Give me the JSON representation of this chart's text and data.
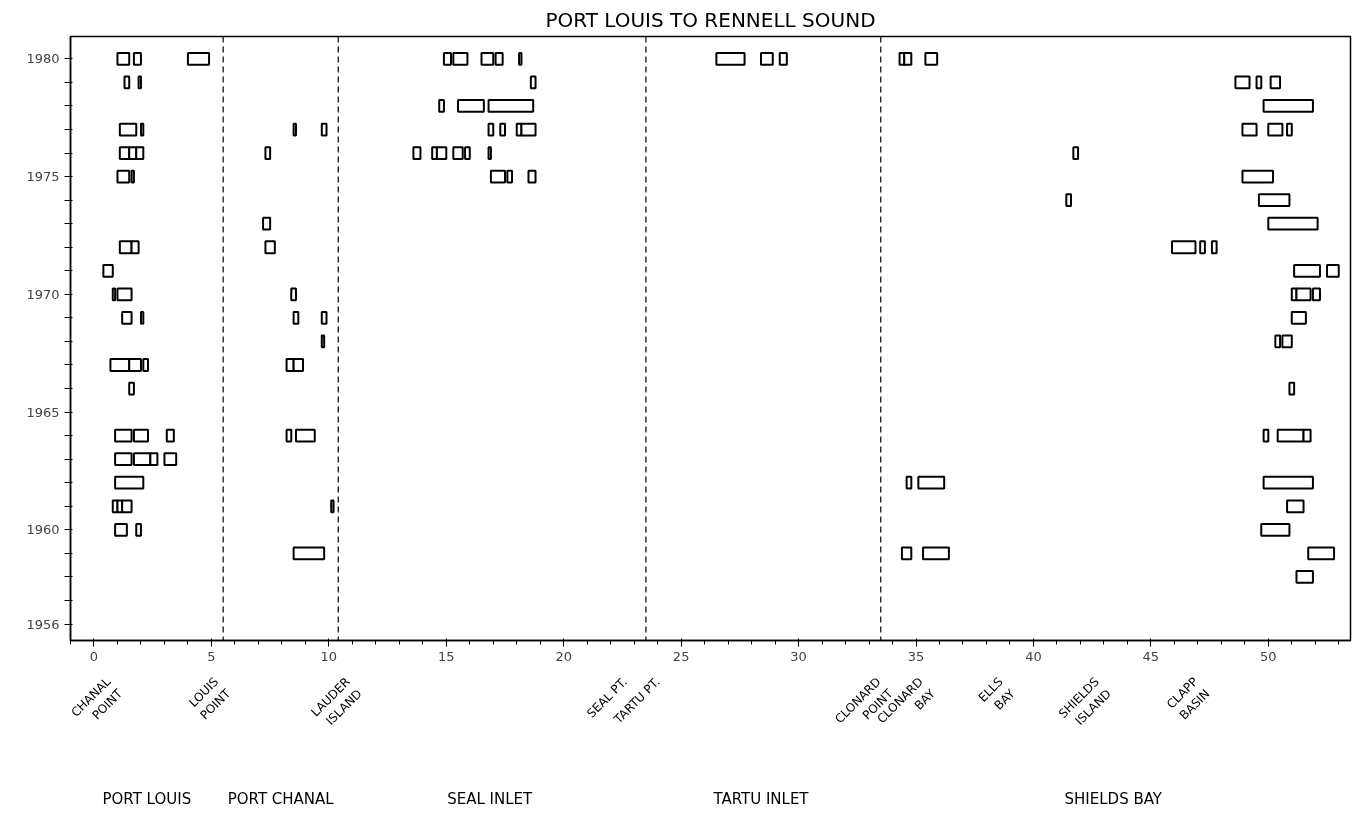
{
  "chart_data": {
    "type": "bar",
    "orientation": "horizontal",
    "title": "PORT LOUIS TO RENNELL SOUND",
    "categories": [
      "1980",
      null,
      null,
      null,
      null,
      "1975",
      null,
      null,
      null,
      null,
      "1970",
      null,
      null,
      null,
      null,
      "1965",
      null,
      null,
      null,
      null,
      "1960",
      null,
      null,
      null,
      "1956"
    ],
    "xlim": [
      -1,
      53.5
    ],
    "xticks": [
      0,
      5,
      10,
      15,
      20,
      25,
      30,
      35,
      40,
      45,
      50
    ],
    "grid": false,
    "series": [
      {
        "color": "#000000",
        "base": [
          1.0,
          1.3,
          14.7,
          1.1,
          1.1,
          1.0,
          41.4,
          7.2,
          1.1,
          0.4,
          0.8,
          1.2,
          9.7,
          0.7,
          1.5,
          null,
          0.9,
          0.9,
          0.9,
          0.8,
          0.9,
          8.5,
          51.2,
          null,
          null
        ],
        "values": [
          0.5,
          0.2,
          0.2,
          0.7,
          0.4,
          0.5,
          0.2,
          0.3,
          0.5,
          0.4,
          0.1,
          0.4,
          0.1,
          0.8,
          0.2,
          null,
          0.7,
          0.7,
          1.2,
          0.2,
          0.5,
          1.3,
          0.7,
          null,
          null
        ]
      },
      {
        "color": "#000000",
        "base": [
          1.7,
          1.9,
          15.5,
          2.0,
          1.5,
          1.6,
          49.6,
          50.0,
          1.6,
          51.1,
          1.0,
          2.0,
          50.3,
          1.5,
          50.9,
          null,
          1.7,
          1.7,
          34.6,
          1.0,
          1.8,
          34.4,
          null,
          null,
          null
        ],
        "values": [
          0.3,
          0.1,
          1.1,
          0.1,
          0.3,
          0.1,
          1.3,
          2.1,
          0.3,
          1.1,
          0.6,
          0.1,
          0.2,
          0.5,
          0.2,
          null,
          0.6,
          0.7,
          0.2,
          0.2,
          0.2,
          0.4,
          null,
          null,
          null
        ]
      },
      {
        "color": "#000000",
        "base": [
          4.0,
          18.6,
          16.8,
          8.5,
          1.8,
          16.9,
          null,
          null,
          7.3,
          52.5,
          8.4,
          8.5,
          50.6,
          2.1,
          null,
          null,
          3.1,
          2.4,
          35.1,
          1.2,
          49.7,
          35.3,
          null,
          null,
          null
        ],
        "values": [
          0.9,
          0.2,
          1.9,
          0.1,
          0.3,
          0.6,
          null,
          null,
          0.4,
          0.5,
          0.2,
          0.2,
          0.4,
          0.2,
          null,
          null,
          0.3,
          0.3,
          1.1,
          0.4,
          1.2,
          1.1,
          null,
          null,
          null
        ]
      },
      {
        "color": "#000000",
        "base": [
          14.9,
          48.6,
          49.8,
          9.7,
          7.3,
          17.6,
          null,
          null,
          45.9,
          null,
          51.0,
          9.7,
          null,
          8.2,
          null,
          null,
          8.2,
          3.0,
          49.8,
          10.1,
          null,
          51.7,
          null,
          null,
          null
        ],
        "values": [
          0.3,
          0.6,
          2.1,
          0.2,
          0.2,
          0.2,
          null,
          null,
          1.0,
          null,
          0.2,
          0.2,
          null,
          0.3,
          null,
          null,
          0.2,
          0.5,
          2.1,
          0.1,
          null,
          1.1,
          null,
          null,
          null
        ]
      },
      {
        "color": "#000000",
        "base": [
          15.3,
          49.5,
          null,
          16.8,
          13.6,
          18.5,
          null,
          null,
          47.1,
          null,
          51.2,
          51.0,
          null,
          8.5,
          null,
          null,
          8.6,
          null,
          null,
          50.8,
          null,
          null,
          null,
          null,
          null
        ],
        "values": [
          0.6,
          0.2,
          null,
          0.2,
          0.3,
          0.3,
          null,
          null,
          0.2,
          null,
          0.6,
          0.6,
          null,
          0.4,
          null,
          null,
          0.8,
          null,
          null,
          0.7,
          null,
          null,
          null,
          null,
          null
        ]
      },
      {
        "color": "#000000",
        "base": [
          16.5,
          50.1,
          null,
          17.3,
          14.4,
          48.9,
          null,
          null,
          47.6,
          null,
          51.9,
          null,
          null,
          null,
          null,
          null,
          49.8,
          null,
          null,
          null,
          null,
          null,
          null,
          null,
          null
        ],
        "values": [
          0.5,
          0.4,
          null,
          0.2,
          0.2,
          1.3,
          null,
          null,
          0.2,
          null,
          0.3,
          null,
          null,
          null,
          null,
          null,
          0.2,
          null,
          null,
          null,
          null,
          null,
          null,
          null,
          null
        ]
      },
      {
        "color": "#000000",
        "base": [
          17.1,
          null,
          null,
          18.0,
          14.6,
          null,
          null,
          null,
          null,
          null,
          null,
          null,
          null,
          null,
          null,
          null,
          50.4,
          null,
          null,
          null,
          null,
          null,
          null,
          null,
          null
        ],
        "values": [
          0.3,
          null,
          null,
          0.2,
          0.4,
          null,
          null,
          null,
          null,
          null,
          null,
          null,
          null,
          null,
          null,
          null,
          1.1,
          null,
          null,
          null,
          null,
          null,
          null,
          null,
          null
        ]
      },
      {
        "color": "#000000",
        "base": [
          18.1,
          null,
          null,
          18.2,
          15.3,
          null,
          null,
          null,
          null,
          null,
          null,
          null,
          null,
          null,
          null,
          null,
          51.5,
          null,
          null,
          null,
          null,
          null,
          null,
          null,
          null
        ],
        "values": [
          0.1,
          null,
          null,
          0.6,
          0.4,
          null,
          null,
          null,
          null,
          null,
          null,
          null,
          null,
          null,
          null,
          null,
          0.3,
          null,
          null,
          null,
          null,
          null,
          null,
          null,
          null
        ]
      },
      {
        "color": "#000000",
        "base": [
          26.5,
          null,
          null,
          48.9,
          15.8,
          null,
          null,
          null,
          null,
          null,
          null,
          null,
          null,
          null,
          null,
          null,
          null,
          null,
          null,
          null,
          null,
          null,
          null,
          null,
          null
        ],
        "values": [
          1.2,
          null,
          null,
          0.6,
          0.2,
          null,
          null,
          null,
          null,
          null,
          null,
          null,
          null,
          null,
          null,
          null,
          null,
          null,
          null,
          null,
          null,
          null,
          null,
          null,
          null
        ]
      },
      {
        "color": "#000000",
        "base": [
          28.4,
          null,
          null,
          50.0,
          16.8,
          null,
          null,
          null,
          null,
          null,
          null,
          null,
          null,
          null,
          null,
          null,
          null,
          null,
          null,
          null,
          null,
          null,
          null,
          null,
          null
        ],
        "values": [
          0.5,
          null,
          null,
          0.6,
          0.1,
          null,
          null,
          null,
          null,
          null,
          null,
          null,
          null,
          null,
          null,
          null,
          null,
          null,
          null,
          null,
          null,
          null,
          null,
          null,
          null
        ]
      },
      {
        "color": "#000000",
        "base": [
          29.2,
          null,
          null,
          50.8,
          41.7,
          null,
          null,
          null,
          null,
          null,
          null,
          null,
          null,
          null,
          null,
          null,
          null,
          null,
          null,
          null,
          null,
          null,
          null,
          null,
          null
        ],
        "values": [
          0.3,
          null,
          null,
          0.2,
          0.2,
          null,
          null,
          null,
          null,
          null,
          null,
          null,
          null,
          null,
          null,
          null,
          null,
          null,
          null,
          null,
          null,
          null,
          null,
          null,
          null
        ]
      },
      {
        "color": "#000000",
        "base": [
          34.3,
          null,
          null,
          null,
          null,
          null,
          null,
          null,
          null,
          null,
          null,
          null,
          null,
          null,
          null,
          null,
          null,
          null,
          null,
          null,
          null,
          null,
          null,
          null,
          null
        ],
        "values": [
          0.2,
          null,
          null,
          null,
          null,
          null,
          null,
          null,
          null,
          null,
          null,
          null,
          null,
          null,
          null,
          null,
          null,
          null,
          null,
          null,
          null,
          null,
          null,
          null,
          null
        ]
      },
      {
        "color": "#000000",
        "base": [
          34.5,
          null,
          null,
          null,
          null,
          null,
          null,
          null,
          null,
          null,
          null,
          null,
          null,
          null,
          null,
          null,
          null,
          null,
          null,
          null,
          null,
          null,
          null,
          null,
          null
        ],
        "values": [
          0.3,
          null,
          null,
          null,
          null,
          null,
          null,
          null,
          null,
          null,
          null,
          null,
          null,
          null,
          null,
          null,
          null,
          null,
          null,
          null,
          null,
          null,
          null,
          null,
          null
        ]
      },
      {
        "color": "#000000",
        "base": [
          35.4,
          null,
          null,
          null,
          null,
          null,
          null,
          null,
          null,
          null,
          null,
          null,
          null,
          null,
          null,
          null,
          null,
          null,
          null,
          null,
          null,
          null,
          null,
          null,
          null
        ],
        "values": [
          0.5,
          null,
          null,
          null,
          null,
          null,
          null,
          null,
          null,
          null,
          null,
          null,
          null,
          null,
          null,
          null,
          null,
          null,
          null,
          null,
          null,
          null,
          null,
          null,
          null
        ]
      }
    ],
    "ref_lines": [
      {
        "axis": "x",
        "value": 5.5,
        "line_style": "dashed"
      },
      {
        "axis": "x",
        "value": 10.4,
        "line_style": "dashed"
      },
      {
        "axis": "x",
        "value": 23.5,
        "line_style": "dashed"
      },
      {
        "axis": "x",
        "value": 33.5,
        "line_style": "dashed"
      }
    ],
    "annotations": [
      "CHANAL\nPOINT",
      "LOUIS\nPOINT",
      "LAUDER\nISLAND",
      "SEAL PT.",
      "TARTU PT.",
      "CLONARD\nPOINT",
      "CLONARD\nBAY",
      "ELLS\nBAY",
      "SHIELDS\nISLAND",
      "CLAPP\nBASIN",
      "PORT LOUIS",
      "PORT CHANAL",
      "SEAL  INLET",
      "TARTU  INLET",
      "SHIELDS  BAY"
    ]
  }
}
